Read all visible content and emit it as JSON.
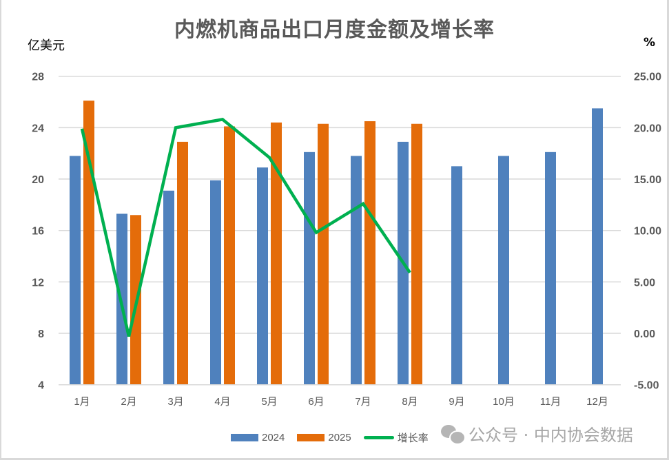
{
  "title": "内燃机商品出口月度金额及增长率",
  "left_axis_unit": "亿美元",
  "right_axis_unit": "%",
  "legend": [
    {
      "label": "2024",
      "color": "#4F81BD",
      "kind": "bar"
    },
    {
      "label": "2025",
      "color": "#E46C0A",
      "kind": "bar"
    },
    {
      "label": "增长率",
      "color": "#00B050",
      "kind": "line"
    }
  ],
  "watermark": "公众号 · 中内协会数据",
  "colors": {
    "s2024": "#4F81BD",
    "s2025": "#E46C0A",
    "growth": "#00B050",
    "grid": "#D9D9D9",
    "text": "#595959"
  },
  "chart_data": {
    "type": "bar+line",
    "title": "内燃机商品出口月度金额及增长率",
    "categories": [
      "1月",
      "2月",
      "3月",
      "4月",
      "5月",
      "6月",
      "7月",
      "8月",
      "9月",
      "10月",
      "11月",
      "12月"
    ],
    "series": [
      {
        "name": "2024",
        "type": "bar",
        "axis": "left",
        "values": [
          21.8,
          17.3,
          19.1,
          19.9,
          20.9,
          22.1,
          21.8,
          22.9,
          21.0,
          21.8,
          22.1,
          25.5
        ]
      },
      {
        "name": "2025",
        "type": "bar",
        "axis": "left",
        "values": [
          26.1,
          17.2,
          22.9,
          24.1,
          24.4,
          24.3,
          24.5,
          24.3,
          null,
          null,
          null,
          null
        ]
      },
      {
        "name": "增长率",
        "type": "line",
        "axis": "right",
        "values": [
          19.9,
          -0.3,
          20.0,
          20.8,
          17.1,
          9.8,
          12.6,
          5.9,
          null,
          null,
          null,
          null
        ]
      }
    ],
    "ylabel": "亿美元",
    "y2label": "%",
    "ylim": [
      4,
      28
    ],
    "yticks": [
      "28",
      "24",
      "20",
      "16",
      "12",
      "8",
      "4"
    ],
    "y2lim": [
      -5,
      25
    ],
    "y2ticks": [
      "25.00",
      "20.00",
      "15.00",
      "10.00",
      "5.00",
      "0.00",
      "-5.00"
    ],
    "grid": true,
    "legend_position": "bottom"
  }
}
